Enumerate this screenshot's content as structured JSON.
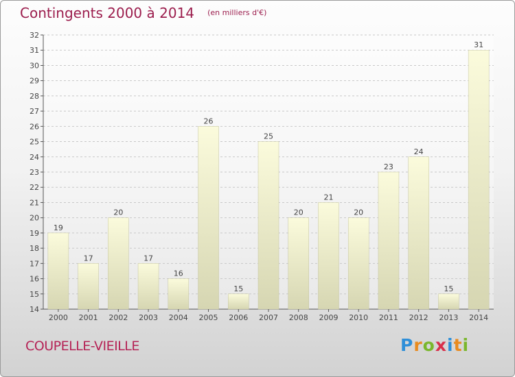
{
  "header": {
    "title": "Contingents 2000 à 2014",
    "subtitle": "(en milliers d'€)"
  },
  "footer": {
    "commune": "COUPELLE-VIEILLE",
    "brand_letters": [
      {
        "char": "P",
        "color": "#2f8fd8"
      },
      {
        "char": "r",
        "color": "#e98b1f"
      },
      {
        "char": "o",
        "color": "#7ab72c"
      },
      {
        "char": "x",
        "color": "#d8304a"
      },
      {
        "char": "i",
        "color": "#2f8fd8"
      },
      {
        "char": "t",
        "color": "#e98b1f"
      },
      {
        "char": "i",
        "color": "#7ab72c"
      }
    ]
  },
  "chart_data": {
    "type": "bar",
    "title": "Contingents 2000 à 2014",
    "subtitle": "(en milliers d'€)",
    "categories": [
      "2000",
      "2001",
      "2002",
      "2003",
      "2004",
      "2005",
      "2006",
      "2007",
      "2008",
      "2009",
      "2010",
      "2011",
      "2012",
      "2013",
      "2014"
    ],
    "values": [
      19,
      17,
      20,
      17,
      16,
      26,
      15,
      25,
      20,
      21,
      20,
      23,
      24,
      15,
      31
    ],
    "ylim": [
      14,
      32
    ],
    "yticks": [
      14,
      15,
      16,
      17,
      18,
      19,
      20,
      21,
      22,
      23,
      24,
      25,
      26,
      27,
      28,
      29,
      30,
      31,
      32
    ],
    "grid": "horizontal dashed",
    "bar_colors": {
      "top": "#fbfbdc",
      "bottom": "#d6d6b2",
      "edge": "#c4c4a0"
    }
  }
}
